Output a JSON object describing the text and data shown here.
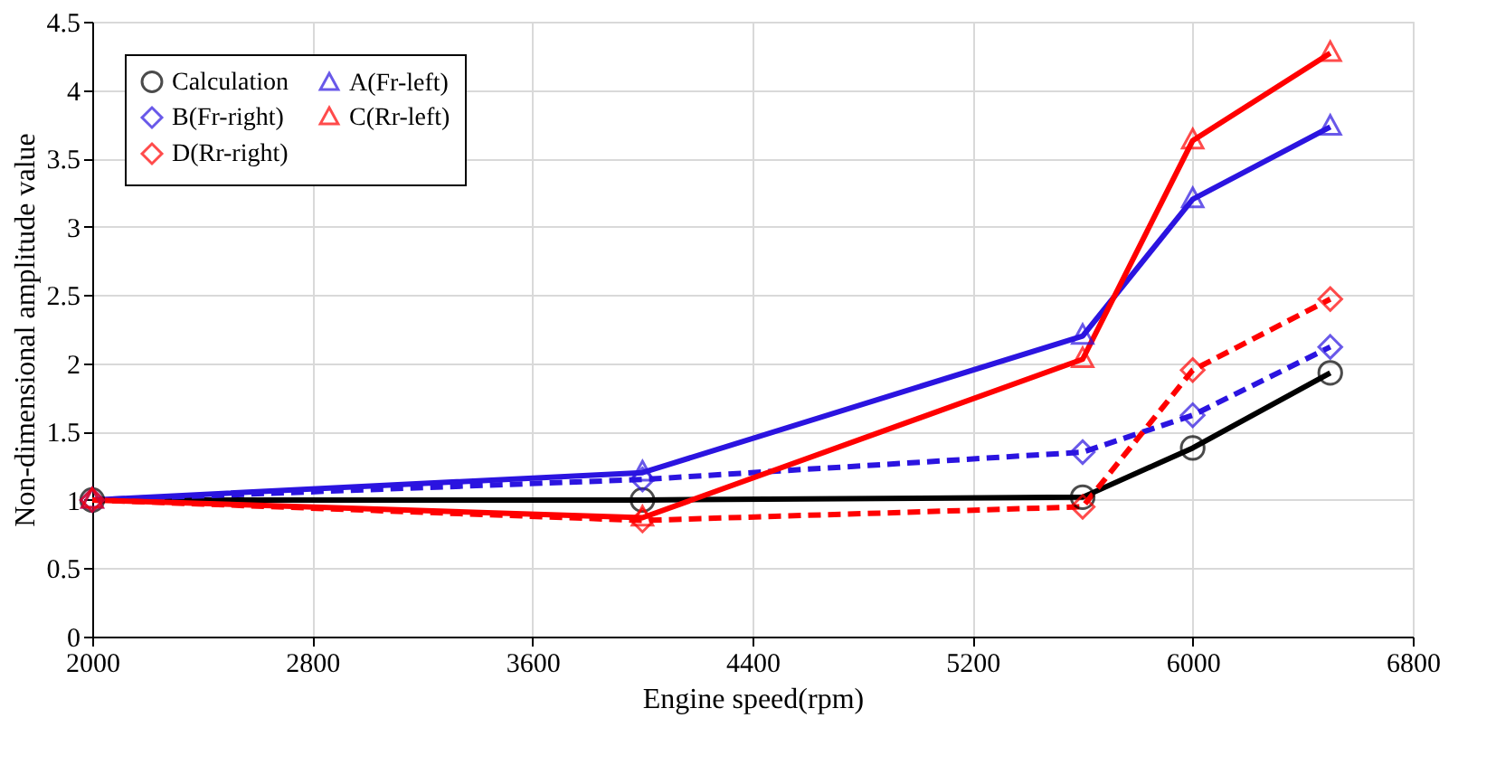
{
  "chart_data": {
    "type": "line",
    "xlabel": "Engine speed(rpm)",
    "ylabel": "Non-dimensional amplitude value",
    "x": [
      2000,
      4000,
      5600,
      6000,
      6500
    ],
    "series": [
      {
        "name": "Calculation",
        "color": "#000000",
        "marker": "circle",
        "line_style": "solid",
        "values": [
          1,
          1.0,
          1.02,
          1.38,
          1.93
        ]
      },
      {
        "name": "A(Fr-left)",
        "color": "#2b14e0",
        "marker": "triangle",
        "line_style": "solid",
        "values": [
          1,
          1.2,
          2.2,
          3.2,
          3.73
        ]
      },
      {
        "name": "B(Fr-right)",
        "color": "#2b14e0",
        "marker": "diamond",
        "line_style": "dashed",
        "values": [
          1,
          1.15,
          1.35,
          1.62,
          2.12
        ]
      },
      {
        "name": "C(Rr-left)",
        "color": "#ff0000",
        "marker": "triangle",
        "line_style": "solid",
        "values": [
          1,
          0.87,
          2.03,
          3.63,
          4.27
        ]
      },
      {
        "name": "D(Rr-right)",
        "color": "#ff0000",
        "marker": "diamond",
        "line_style": "dashed",
        "values": [
          1,
          0.85,
          0.95,
          1.95,
          2.47
        ]
      }
    ],
    "xlim": [
      2000,
      6800
    ],
    "xticks": [
      2000,
      2800,
      3600,
      4400,
      5200,
      6000,
      6800
    ],
    "ylim": [
      0,
      4.5
    ],
    "yticks": [
      0,
      0.5,
      1,
      1.5,
      2,
      2.5,
      3,
      3.5,
      4,
      4.5
    ],
    "grid": true,
    "legend": "top left"
  }
}
